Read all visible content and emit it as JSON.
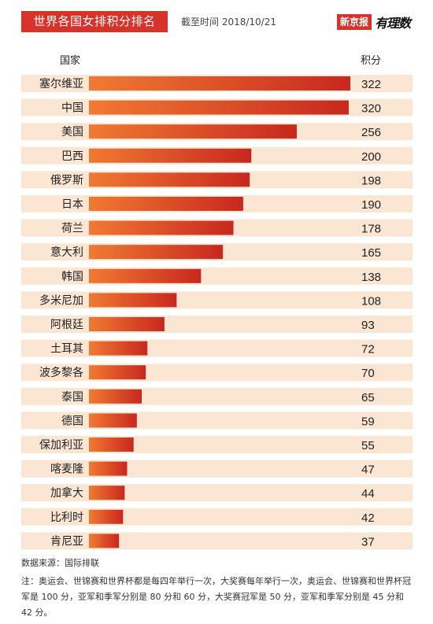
{
  "header": {
    "title": "世界各国女排积分排名",
    "date": "截至时间 2018/10/21",
    "brand_box": "新京报",
    "brand_script": "有理数"
  },
  "columns": {
    "country": "国家",
    "points": "积分"
  },
  "colors": {
    "title_bg": "#d8332b",
    "row_bg": "#fbe6d3",
    "bar_start": "#f07a32",
    "bar_end": "#c8281f"
  },
  "chart_data": {
    "type": "bar",
    "orientation": "horizontal",
    "categories": [
      "塞尔维亚",
      "中国",
      "美国",
      "巴西",
      "俄罗斯",
      "日本",
      "荷兰",
      "意大利",
      "韩国",
      "多米尼加",
      "阿根廷",
      "土耳其",
      "波多黎各",
      "泰国",
      "德国",
      "保加利亚",
      "喀麦隆",
      "加拿大",
      "比利时",
      "肯尼亚"
    ],
    "values": [
      322,
      320,
      256,
      200,
      198,
      190,
      178,
      165,
      138,
      108,
      93,
      72,
      70,
      65,
      59,
      55,
      47,
      44,
      42,
      37
    ],
    "xlabel": "积分",
    "ylabel": "国家",
    "xlim": [
      0,
      322
    ],
    "grid": false,
    "legend": "none"
  },
  "footer": {
    "source": "数据来源：国际排联",
    "note": "注：奥运会、世锦赛和世界杯都是每四年举行一次，大奖赛每年举行一次，奥运会、世锦赛和世界杯冠军是 100 分，亚军和季军分别是 80 分和 60 分，大奖赛冠军是 50 分，亚军和季军分别是 45 分和 42 分。"
  }
}
